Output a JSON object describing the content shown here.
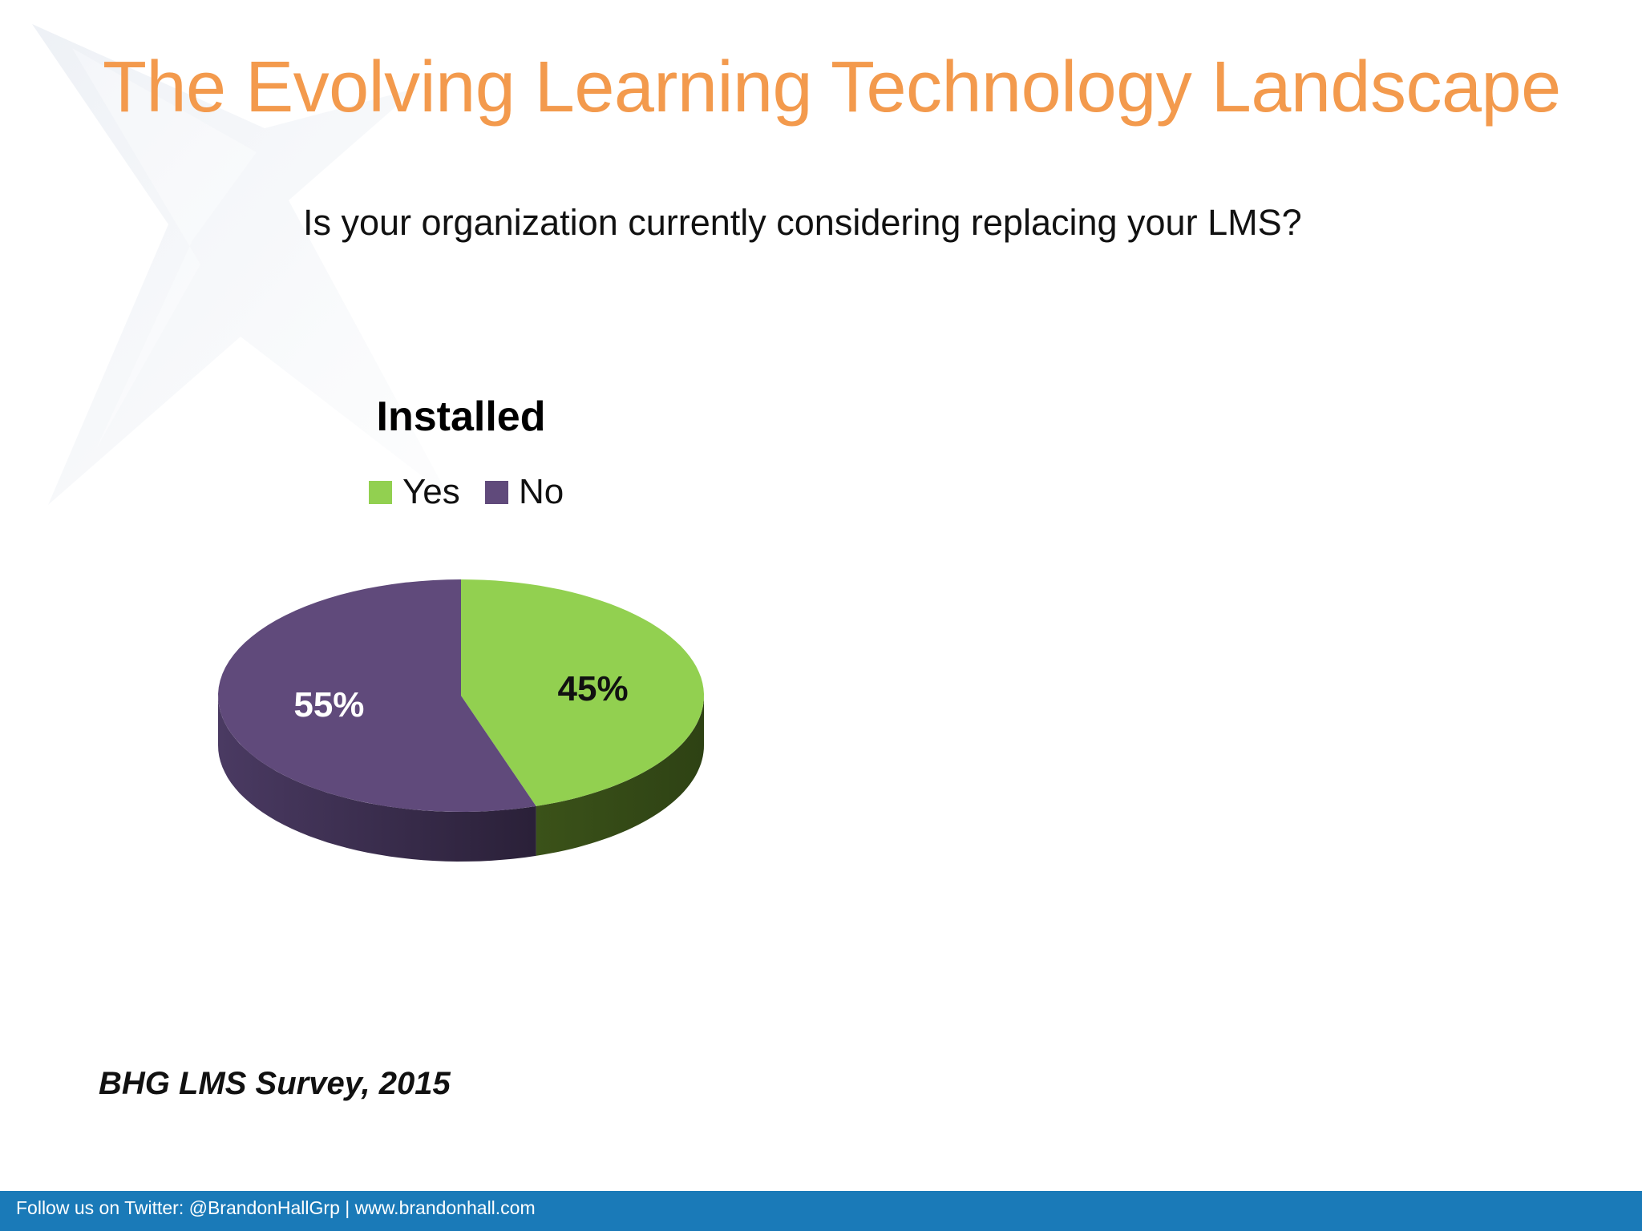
{
  "slide": {
    "title": "The Evolving Learning Technology Landscape",
    "question": "Is your organization currently considering replacing your LMS?",
    "source": "BHG LMS Survey, 2015",
    "footer": "Follow us on Twitter: @BrandonHallGrp | www.brandonhall.com"
  },
  "colors": {
    "title": "#f39a4d",
    "footer_bar": "#1a7ab8",
    "yes": "#92d050",
    "no": "#604a7b"
  },
  "chart_data": {
    "type": "pie",
    "title": "Installed",
    "legend_position": "top",
    "categories": [
      "Yes",
      "No"
    ],
    "values": [
      45,
      55
    ],
    "labels": [
      "45%",
      "55%"
    ],
    "colors": [
      "#92d050",
      "#604a7b"
    ],
    "style": "3d"
  }
}
